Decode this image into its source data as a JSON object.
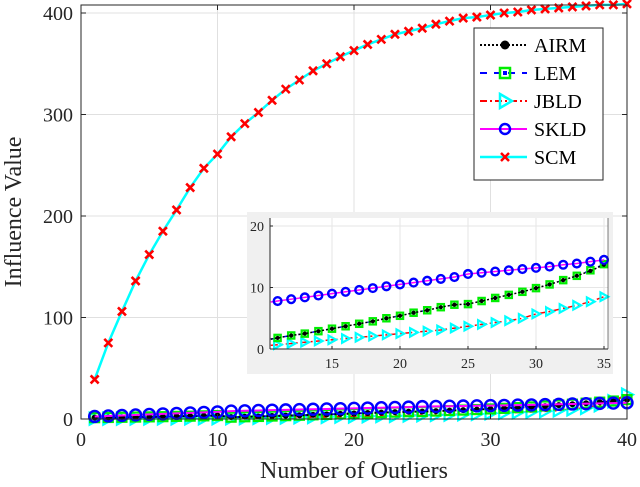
{
  "chart_data": [
    {
      "type": "line",
      "title": "",
      "xlabel": "Number of Outliers",
      "ylabel": "Influence Value",
      "xlim": [
        0,
        40
      ],
      "ylim": [
        0,
        410
      ],
      "xticks": [
        0,
        10,
        20,
        30,
        40
      ],
      "yticks": [
        0,
        100,
        200,
        300,
        400
      ],
      "grid": true,
      "legend_position": "upper right",
      "x": [
        1,
        2,
        3,
        4,
        5,
        6,
        7,
        8,
        9,
        10,
        11,
        12,
        13,
        14,
        15,
        16,
        17,
        18,
        19,
        20,
        21,
        22,
        23,
        24,
        25,
        26,
        27,
        28,
        29,
        30,
        31,
        32,
        33,
        34,
        35,
        36,
        37,
        38,
        39,
        40
      ],
      "series": [
        {
          "name": "AIRM",
          "color": "#000000",
          "line": "dotted",
          "marker": "filled-circle",
          "values": [
            1.3,
            1.5,
            1.7,
            1.9,
            2.1,
            2.3,
            2.6,
            2.8,
            3.1,
            3.4,
            1.8,
            2.2,
            2.5,
            2.9,
            3.3,
            3.7,
            4.1,
            4.5,
            5.0,
            5.4,
            5.9,
            6.3,
            6.8,
            7.2,
            7.3,
            7.8,
            8.3,
            8.8,
            9.3,
            9.9,
            10.5,
            11.2,
            11.9,
            12.7,
            13.7,
            14.5,
            15.5,
            16.5,
            17.6,
            19.0
          ]
        },
        {
          "name": "LEM",
          "color": "#0000ff",
          "line": "dashed",
          "marker": "green-square",
          "values": [
            1.3,
            1.5,
            1.7,
            1.9,
            2.1,
            2.3,
            2.6,
            2.8,
            3.1,
            3.4,
            1.8,
            2.2,
            2.5,
            2.9,
            3.3,
            3.7,
            4.1,
            4.5,
            5.0,
            5.4,
            5.9,
            6.3,
            6.8,
            7.2,
            7.3,
            7.8,
            8.3,
            8.8,
            9.3,
            9.9,
            10.5,
            11.2,
            11.9,
            12.8,
            13.8,
            14.6,
            15.6,
            16.6,
            17.7,
            19.1
          ]
        },
        {
          "name": "JBLD",
          "color": "#ff0000",
          "line": "dashdot",
          "marker": "cyan-triangle-right",
          "values": [
            0.3,
            0.35,
            0.4,
            0.45,
            0.5,
            0.55,
            0.6,
            0.65,
            0.7,
            0.75,
            0.7,
            0.9,
            1.1,
            1.3,
            1.5,
            1.7,
            1.9,
            2.1,
            2.3,
            2.5,
            2.7,
            2.9,
            3.1,
            3.4,
            3.7,
            4.0,
            4.3,
            4.6,
            5.0,
            5.7,
            6.1,
            6.6,
            7.1,
            7.7,
            8.5,
            9.5,
            11.0,
            13.5,
            17.5,
            24.0
          ]
        },
        {
          "name": "SKLD",
          "color": "#ff00ff",
          "line": "solid",
          "marker": "blue-open-circle",
          "values": [
            2.5,
            3.0,
            3.5,
            4.0,
            4.5,
            5.0,
            5.5,
            6.0,
            6.5,
            7.0,
            7.8,
            8.1,
            8.4,
            8.7,
            9.0,
            9.3,
            9.6,
            9.9,
            10.2,
            10.5,
            10.8,
            11.1,
            11.4,
            11.7,
            12.2,
            12.4,
            12.6,
            12.8,
            13.0,
            13.2,
            13.4,
            13.7,
            13.9,
            14.2,
            14.5,
            14.8,
            15.1,
            15.4,
            15.7,
            16.0
          ]
        },
        {
          "name": "SCM",
          "color": "#00ffff",
          "line": "solid",
          "marker": "red-x",
          "values": [
            39,
            75,
            106,
            136,
            162,
            185,
            206,
            228,
            247,
            261,
            278,
            291,
            302,
            314,
            325,
            334,
            343,
            350,
            357,
            363,
            369,
            374,
            379,
            382,
            385,
            389,
            392,
            395,
            396,
            398,
            400,
            401,
            403,
            404,
            405,
            406,
            407,
            408,
            408,
            409
          ]
        }
      ]
    },
    {
      "type": "line",
      "title": "inset (zoom)",
      "xlim": [
        10.5,
        35.3
      ],
      "ylim": [
        0,
        21
      ],
      "xticks": [
        15,
        20,
        25,
        30,
        35
      ],
      "yticks": [
        0,
        10,
        20
      ],
      "grid": true,
      "x": [
        11,
        12,
        13,
        14,
        15,
        16,
        17,
        18,
        19,
        20,
        21,
        22,
        23,
        24,
        25,
        26,
        27,
        28,
        29,
        30,
        31,
        32,
        33,
        34,
        35
      ],
      "series": [
        {
          "name": "AIRM",
          "values": [
            1.8,
            2.2,
            2.5,
            2.9,
            3.3,
            3.7,
            4.1,
            4.5,
            5.0,
            5.4,
            5.9,
            6.3,
            6.8,
            7.2,
            7.3,
            7.8,
            8.3,
            8.8,
            9.3,
            9.9,
            10.5,
            11.2,
            11.9,
            12.7,
            13.7
          ]
        },
        {
          "name": "LEM",
          "values": [
            1.8,
            2.2,
            2.5,
            2.9,
            3.3,
            3.7,
            4.1,
            4.5,
            5.0,
            5.4,
            5.9,
            6.3,
            6.8,
            7.2,
            7.3,
            7.8,
            8.3,
            8.8,
            9.3,
            9.9,
            10.5,
            11.2,
            11.9,
            12.8,
            13.8
          ]
        },
        {
          "name": "JBLD",
          "values": [
            0.7,
            0.9,
            1.1,
            1.3,
            1.5,
            1.7,
            1.9,
            2.1,
            2.3,
            2.5,
            2.7,
            2.9,
            3.1,
            3.4,
            3.7,
            4.0,
            4.3,
            4.6,
            5.0,
            5.7,
            6.1,
            6.6,
            7.1,
            7.7,
            8.5
          ]
        },
        {
          "name": "SKLD",
          "values": [
            7.8,
            8.1,
            8.4,
            8.7,
            9.0,
            9.3,
            9.6,
            9.9,
            10.2,
            10.5,
            10.8,
            11.1,
            11.4,
            11.7,
            12.2,
            12.4,
            12.6,
            12.8,
            13.0,
            13.2,
            13.4,
            13.7,
            13.9,
            14.2,
            14.5
          ]
        }
      ]
    }
  ],
  "labels": {
    "xlabel": "Number of Outliers",
    "ylabel": "Influence Value",
    "xticks": [
      "0",
      "10",
      "20",
      "30",
      "40"
    ],
    "yticks": [
      "0",
      "100",
      "200",
      "300",
      "400"
    ],
    "inset_xticks": [
      "15",
      "20",
      "25",
      "30",
      "35"
    ],
    "inset_yticks": [
      "0",
      "10",
      "20"
    ]
  },
  "legend": [
    {
      "label": "AIRM"
    },
    {
      "label": "LEM"
    },
    {
      "label": "JBLD"
    },
    {
      "label": "SKLD"
    },
    {
      "label": "SCM"
    }
  ]
}
